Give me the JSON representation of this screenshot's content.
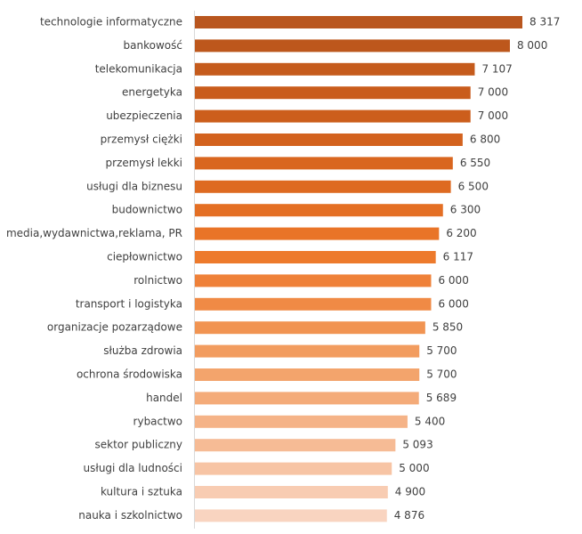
{
  "chart_data": {
    "type": "hbar",
    "categories": [
      "technologie informatyczne",
      "bankowość",
      "telekomunikacja",
      "energetyka",
      "ubezpieczenia",
      "przemysł ciężki",
      "przemysł lekki",
      "usługi dla biznesu",
      "budownictwo",
      "media,wydawnictwa,reklama, PR",
      "ciepłownictwo",
      "rolnictwo",
      "transport i logistyka",
      "organizacje pozarządowe",
      "służba zdrowia",
      "ochrona środowiska",
      "handel",
      "rybactwo",
      "sektor publiczny",
      "usługi dla ludności",
      "kultura i sztuka",
      "nauka i szkolnictwo"
    ],
    "values": [
      8317,
      8000,
      7107,
      7000,
      7000,
      6800,
      6550,
      6500,
      6300,
      6200,
      6117,
      6000,
      6000,
      5850,
      5700,
      5700,
      5689,
      5400,
      5093,
      5000,
      4900,
      4876
    ],
    "value_labels": [
      "8 317",
      "8 000",
      "7 107",
      "7 000",
      "7 000",
      "6 800",
      "6 550",
      "6 500",
      "6 300",
      "6 200",
      "6 117",
      "6 000",
      "6 000",
      "5 850",
      "5 700",
      "5 700",
      "5 689",
      "5 400",
      "5 093",
      "5 000",
      "4 900",
      "4 876"
    ],
    "colors": [
      "#b9561e",
      "#bd571c",
      "#c55b1c",
      "#c95c1c",
      "#cc5e1c",
      "#d3621e",
      "#d9661f",
      "#de6a21",
      "#e46f24",
      "#e97427",
      "#ed7a2c",
      "#ef8139",
      "#f08a45",
      "#f19452",
      "#f29c5f",
      "#f3a46c",
      "#f4ab79",
      "#f5b387",
      "#f6bb95",
      "#f7c4a4",
      "#f8ccb2",
      "#f9d4c0"
    ]
  }
}
